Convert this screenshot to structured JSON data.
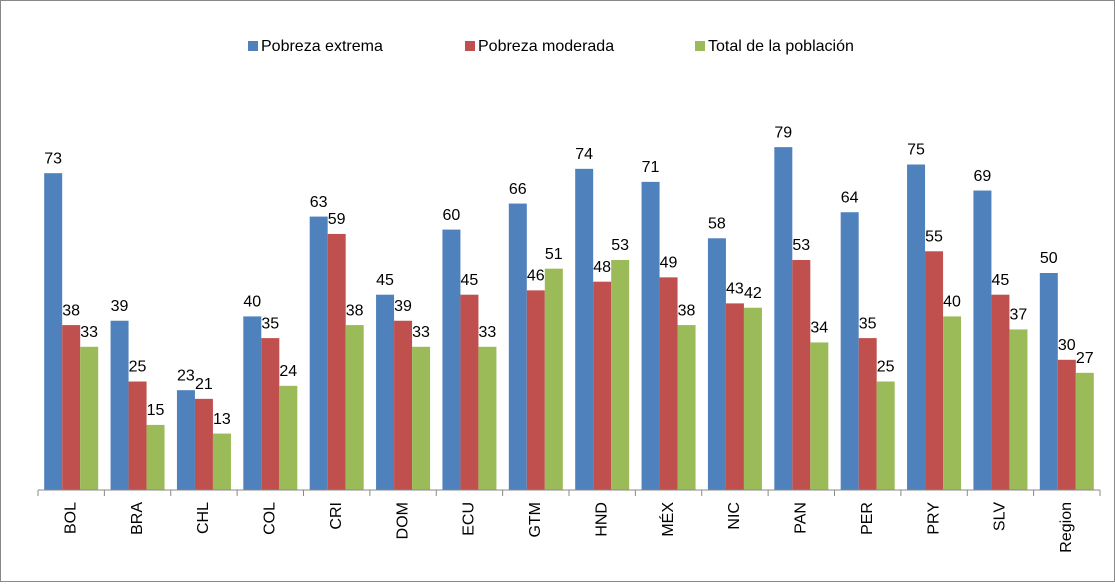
{
  "chart_data": {
    "type": "bar",
    "categories": [
      "BOL",
      "BRA",
      "CHL",
      "COL",
      "CRI",
      "DOM",
      "ECU",
      "GTM",
      "HND",
      "MÉX",
      "NIC",
      "PAN",
      "PER",
      "PRY",
      "SLV",
      "Region"
    ],
    "series": [
      {
        "name": "Pobreza extrema",
        "color": "#4f81bd",
        "values": [
          73,
          39,
          23,
          40,
          63,
          45,
          60,
          66,
          74,
          71,
          58,
          79,
          64,
          75,
          69,
          50
        ]
      },
      {
        "name": "Pobreza moderada",
        "color": "#c0504d",
        "values": [
          38,
          25,
          21,
          35,
          59,
          39,
          45,
          46,
          48,
          49,
          43,
          53,
          35,
          55,
          45,
          30
        ]
      },
      {
        "name": "Total de la población",
        "color": "#9bbb59",
        "values": [
          33,
          15,
          13,
          24,
          38,
          33,
          33,
          51,
          53,
          38,
          42,
          34,
          25,
          40,
          37,
          27
        ]
      }
    ],
    "legend": "top"
  }
}
